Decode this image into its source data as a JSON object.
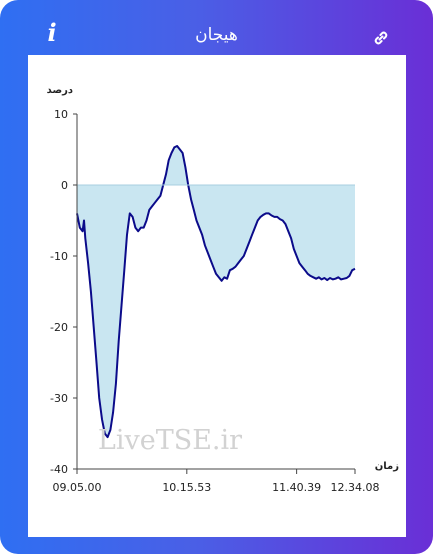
{
  "header": {
    "title": "هیجان",
    "info_icon": "info-icon",
    "link_icon": "link-icon"
  },
  "watermark": "LiveTSE.ir",
  "chart_data": {
    "type": "area",
    "ylabel": "درصد",
    "xlabel": "زمان",
    "ylim": [
      -40,
      10
    ],
    "yticks": [
      "10",
      "0",
      "-10",
      "-20",
      "-30",
      "-40"
    ],
    "yticks_values": [
      10,
      0,
      -10,
      -20,
      -30,
      -40
    ],
    "xticks": [
      "09.05.00",
      "10.15.53",
      "11.40.39",
      "12.34.08"
    ],
    "xticks_fraction": [
      0,
      0.395,
      0.79,
      1
    ],
    "grid": false,
    "colors": {
      "line": "#0b0b8a",
      "fill": "#c9e6f1",
      "axis": "#444444"
    },
    "series": [
      {
        "x": [
          0,
          0.01,
          0.02,
          0.025,
          0.03,
          0.04,
          0.05,
          0.06,
          0.07,
          0.08,
          0.09,
          0.1,
          0.11,
          0.12,
          0.13,
          0.14,
          0.15,
          0.16,
          0.17,
          0.18,
          0.19,
          0.2,
          0.21,
          0.22,
          0.23,
          0.24,
          0.25,
          0.26,
          0.27,
          0.28,
          0.29,
          0.3,
          0.31,
          0.32,
          0.33,
          0.34,
          0.35,
          0.36,
          0.37,
          0.38,
          0.39,
          0.4,
          0.41,
          0.42,
          0.43,
          0.44,
          0.45,
          0.46,
          0.47,
          0.48,
          0.49,
          0.5,
          0.51,
          0.52,
          0.53,
          0.54,
          0.55,
          0.56,
          0.57,
          0.58,
          0.59,
          0.6,
          0.61,
          0.62,
          0.63,
          0.64,
          0.65,
          0.66,
          0.67,
          0.68,
          0.69,
          0.7,
          0.71,
          0.72,
          0.73,
          0.74,
          0.75,
          0.76,
          0.77,
          0.78,
          0.79,
          0.8,
          0.81,
          0.82,
          0.83,
          0.84,
          0.85,
          0.86,
          0.87,
          0.88,
          0.89,
          0.9,
          0.91,
          0.92,
          0.93,
          0.94,
          0.95,
          0.96,
          0.97,
          0.98,
          0.99,
          1
        ],
        "values": [
          -4,
          -6,
          -6.5,
          -5,
          -7.5,
          -11,
          -15,
          -20,
          -25,
          -30,
          -33,
          -35,
          -35.5,
          -34.5,
          -32,
          -28,
          -22,
          -17,
          -12,
          -7,
          -4,
          -4.5,
          -6,
          -6.5,
          -6,
          -6,
          -5,
          -3.5,
          -3,
          -2.5,
          -2,
          -1.5,
          0,
          1.5,
          3.5,
          4.5,
          5.3,
          5.5,
          5,
          4.5,
          2.5,
          0,
          -2,
          -3.5,
          -5,
          -6,
          -7,
          -8.5,
          -9.5,
          -10.5,
          -11.5,
          -12.5,
          -13,
          -13.5,
          -13,
          -13.2,
          -12,
          -11.8,
          -11.5,
          -11,
          -10.5,
          -10,
          -9,
          -8,
          -7,
          -6,
          -5,
          -4.5,
          -4.2,
          -4,
          -4,
          -4.3,
          -4.5,
          -4.5,
          -4.8,
          -5,
          -5.5,
          -6.5,
          -7.5,
          -9,
          -10,
          -11,
          -11.5,
          -12,
          -12.5,
          -12.8,
          -13,
          -13.2,
          -13,
          -13.3,
          -13.1,
          -13.4,
          -13.1,
          -13.3,
          -13.2,
          -13,
          -13.3,
          -13.2,
          -13.1,
          -12.8,
          -12,
          -11.8
        ],
        "note_x": "fraction of session time from 09.05.00 to 12.34.08"
      }
    ]
  }
}
